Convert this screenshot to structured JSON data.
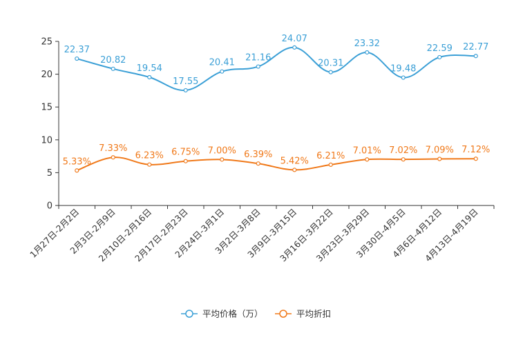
{
  "chart_data": {
    "type": "line",
    "title": "",
    "xlabel": "",
    "ylabel": "",
    "ylim": [
      0,
      25
    ],
    "yticks": [
      0,
      5,
      10,
      15,
      20,
      25
    ],
    "categories": [
      "1月27日-2月2日",
      "2月3日-2月9日",
      "2月10日-2月16日",
      "2月17日-2月23日",
      "2月24日-3月1日",
      "3月2日-3月8日",
      "3月9日-3月15日",
      "3月16日-3月22日",
      "3月23日-3月29日",
      "3月30日-4月5日",
      "4月6日-4月12日",
      "4月13日-4月19日"
    ],
    "series": [
      {
        "name": "平均价格（万）",
        "color": "#3a9fd6",
        "values": [
          22.37,
          20.82,
          19.54,
          17.55,
          20.41,
          21.16,
          24.07,
          20.31,
          23.32,
          19.48,
          22.59,
          22.77
        ],
        "labels": [
          "22.37",
          "20.82",
          "19.54",
          "17.55",
          "20.41",
          "21.16",
          "24.07",
          "20.31",
          "23.32",
          "19.48",
          "22.59",
          "22.77"
        ]
      },
      {
        "name": "平均折扣",
        "color": "#f07818",
        "values": [
          5.33,
          7.33,
          6.23,
          6.75,
          7.0,
          6.39,
          5.42,
          6.21,
          7.01,
          7.02,
          7.09,
          7.12
        ],
        "labels": [
          "5.33%",
          "7.33%",
          "6.23%",
          "6.75%",
          "7.00%",
          "6.39%",
          "5.42%",
          "6.21%",
          "7.01%",
          "7.02%",
          "7.09%",
          "7.12%"
        ]
      }
    ],
    "legend_position": "bottom-center"
  }
}
